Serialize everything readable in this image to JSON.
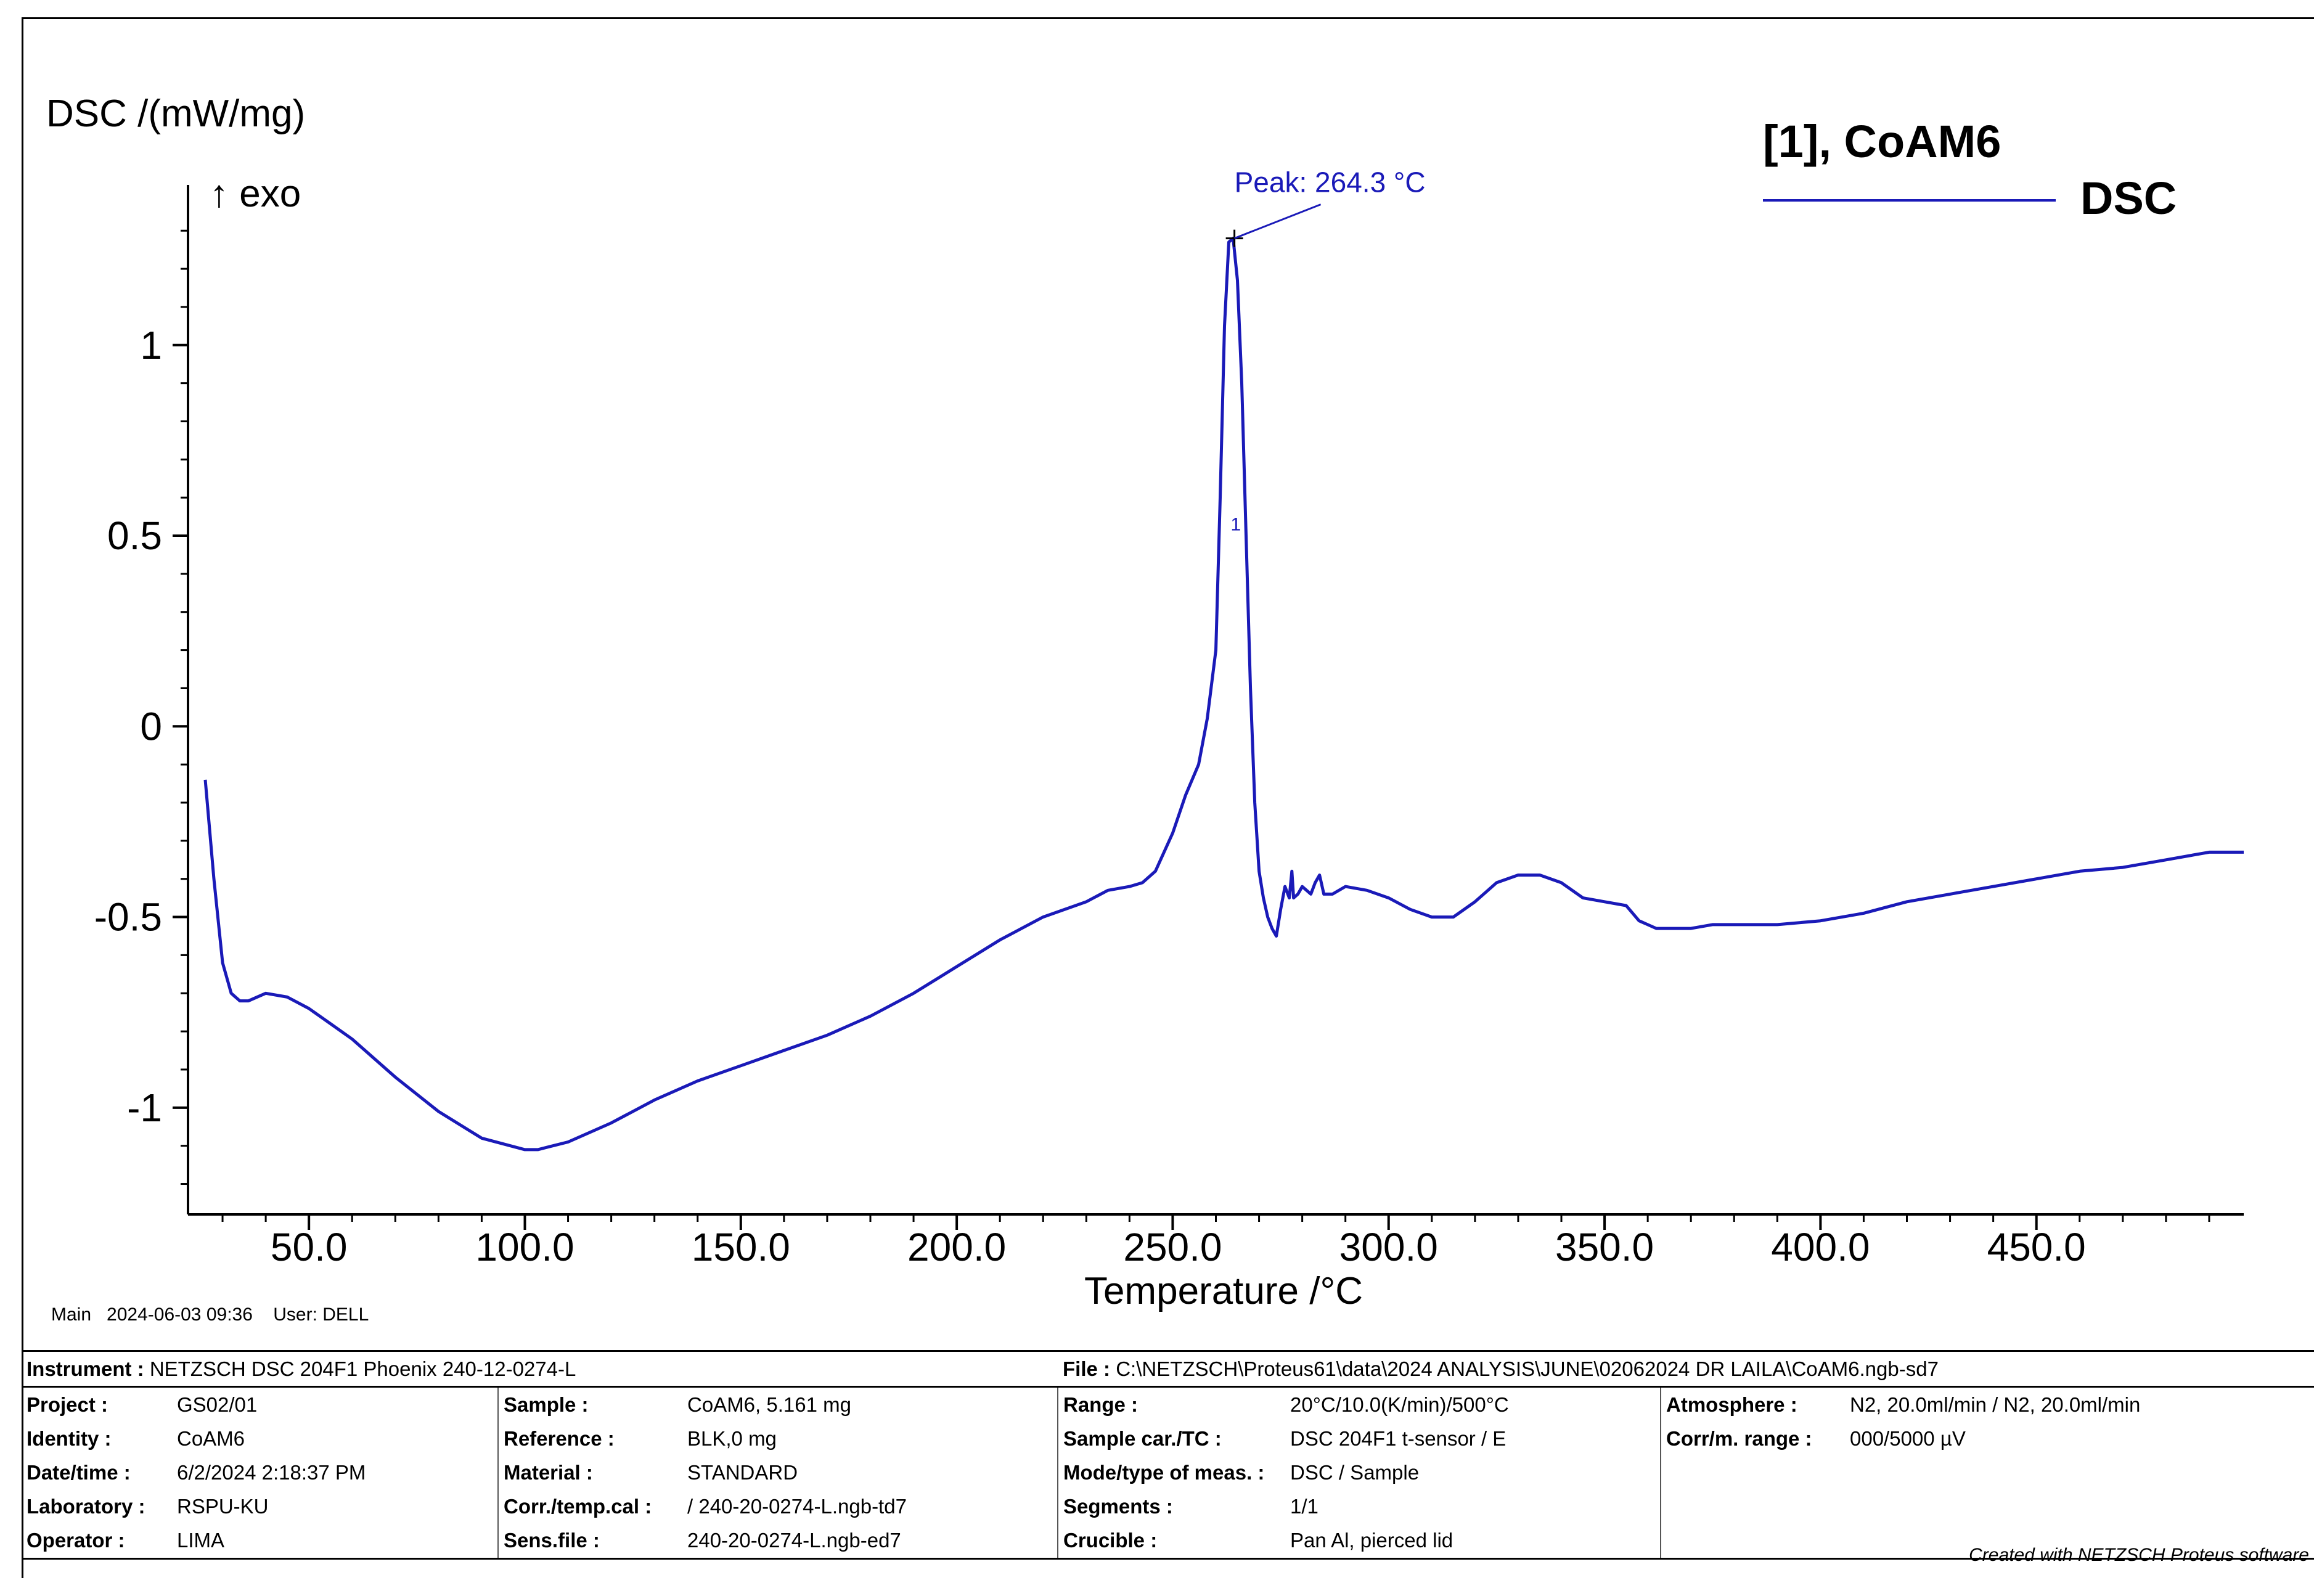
{
  "chart_data": {
    "type": "line",
    "ylabel": "DSC /(mW/mg)",
    "exo_label": "↑ exo",
    "xlabel": "Temperature /°C",
    "xlim": [
      22,
      498
    ],
    "ylim": [
      -1.28,
      1.42
    ],
    "x_ticks": [
      {
        "value": 50,
        "label": "50.0"
      },
      {
        "value": 100,
        "label": "100.0"
      },
      {
        "value": 150,
        "label": "150.0"
      },
      {
        "value": 200,
        "label": "200.0"
      },
      {
        "value": 250,
        "label": "250.0"
      },
      {
        "value": 300,
        "label": "300.0"
      },
      {
        "value": 350,
        "label": "350.0"
      },
      {
        "value": 400,
        "label": "400.0"
      },
      {
        "value": 450,
        "label": "450.0"
      }
    ],
    "y_ticks": [
      {
        "value": 1,
        "label": "1"
      },
      {
        "value": 0.5,
        "label": "0.5"
      },
      {
        "value": 0,
        "label": "0"
      },
      {
        "value": -0.5,
        "label": "-0.5"
      },
      {
        "value": -1,
        "label": "-1"
      }
    ],
    "legend": {
      "title": "[1], CoAM6",
      "series_label": "DSC",
      "position": "top-right"
    },
    "series": [
      {
        "name": "DSC",
        "color": "#1a1ab8",
        "x": [
          26,
          28,
          30,
          32,
          34,
          36,
          40,
          45,
          50,
          55,
          60,
          70,
          80,
          90,
          100,
          103,
          110,
          120,
          130,
          140,
          150,
          160,
          170,
          180,
          190,
          200,
          210,
          220,
          230,
          235,
          240,
          243,
          246,
          250,
          253,
          256,
          258,
          260,
          261,
          262,
          263,
          264,
          265,
          266,
          267,
          268,
          269,
          270,
          271,
          272,
          273,
          274,
          275,
          276,
          277,
          277.6,
          278,
          279,
          280,
          281,
          282,
          283,
          284,
          285,
          287,
          290,
          295,
          300,
          305,
          310,
          315,
          320,
          325,
          330,
          335,
          340,
          345,
          350,
          355,
          358,
          362,
          366,
          370,
          375,
          380,
          390,
          400,
          410,
          420,
          430,
          440,
          450,
          460,
          470,
          480,
          490,
          498
        ],
        "y": [
          -0.14,
          -0.4,
          -0.62,
          -0.7,
          -0.72,
          -0.72,
          -0.7,
          -0.71,
          -0.74,
          -0.78,
          -0.82,
          -0.92,
          -1.01,
          -1.08,
          -1.11,
          -1.11,
          -1.09,
          -1.04,
          -0.98,
          -0.93,
          -0.89,
          -0.85,
          -0.81,
          -0.76,
          -0.7,
          -0.63,
          -0.56,
          -0.5,
          -0.46,
          -0.43,
          -0.42,
          -0.41,
          -0.38,
          -0.28,
          -0.18,
          -0.1,
          0.02,
          0.2,
          0.6,
          1.05,
          1.27,
          1.28,
          1.17,
          0.9,
          0.5,
          0.1,
          -0.2,
          -0.38,
          -0.45,
          -0.5,
          -0.53,
          -0.55,
          -0.48,
          -0.42,
          -0.45,
          -0.38,
          -0.45,
          -0.44,
          -0.42,
          -0.43,
          -0.44,
          -0.41,
          -0.39,
          -0.44,
          -0.44,
          -0.42,
          -0.43,
          -0.45,
          -0.48,
          -0.5,
          -0.5,
          -0.46,
          -0.41,
          -0.39,
          -0.39,
          -0.41,
          -0.45,
          -0.46,
          -0.47,
          -0.51,
          -0.53,
          -0.53,
          -0.53,
          -0.52,
          -0.52,
          -0.52,
          -0.51,
          -0.49,
          -0.46,
          -0.44,
          -0.42,
          -0.4,
          -0.38,
          -0.37,
          -0.35,
          -0.33,
          -0.33
        ]
      }
    ],
    "annotations": [
      {
        "text": "Peak: 264.3 °C",
        "x": 264.3,
        "y": 1.28
      },
      {
        "text": "1",
        "x": 264,
        "y": 0.53
      }
    ]
  },
  "footer_meta": "Main   2024-06-03 09:36    User: DELL",
  "info": {
    "instrument": {
      "key": "Instrument :",
      "value": "NETZSCH DSC 204F1 Phoenix 240-12-0274-L"
    },
    "file": {
      "key": "File :",
      "value": "C:\\NETZSCH\\Proteus61\\data\\2024 ANALYSIS\\JUNE\\02062024 DR LAILA\\CoAM6.ngb-sd7"
    },
    "rows": [
      [
        {
          "key": "Project :",
          "value": "GS02/01"
        },
        {
          "key": "Sample :",
          "value": "CoAM6, 5.161 mg"
        },
        {
          "key": "Range :",
          "value": "20°C/10.0(K/min)/500°C"
        },
        {
          "key": "Atmosphere :",
          "value": "N2, 20.0ml/min / N2, 20.0ml/min"
        }
      ],
      [
        {
          "key": "Identity :",
          "value": "CoAM6"
        },
        {
          "key": "Reference :",
          "value": "BLK,0 mg"
        },
        {
          "key": "Sample car./TC :",
          "value": "DSC 204F1 t-sensor / E"
        },
        {
          "key": "Corr/m. range :",
          "value": "000/5000 µV"
        }
      ],
      [
        {
          "key": "Date/time :",
          "value": "6/2/2024 2:18:37 PM"
        },
        {
          "key": "Material :",
          "value": "STANDARD"
        },
        {
          "key": "Mode/type of meas. :",
          "value": "DSC / Sample"
        },
        {
          "key": "",
          "value": ""
        }
      ],
      [
        {
          "key": "Laboratory :",
          "value": "RSPU-KU"
        },
        {
          "key": "Corr./temp.cal :",
          "value": " / 240-20-0274-L.ngb-td7"
        },
        {
          "key": "Segments :",
          "value": "1/1"
        },
        {
          "key": "",
          "value": ""
        }
      ],
      [
        {
          "key": "Operator :",
          "value": "LIMA"
        },
        {
          "key": "Sens.file :",
          "value": "240-20-0274-L.ngb-ed7"
        },
        {
          "key": "Crucible :",
          "value": "Pan Al, pierced lid"
        },
        {
          "key": "",
          "value": ""
        }
      ]
    ]
  },
  "credit": "Created with NETZSCH Proteus software"
}
